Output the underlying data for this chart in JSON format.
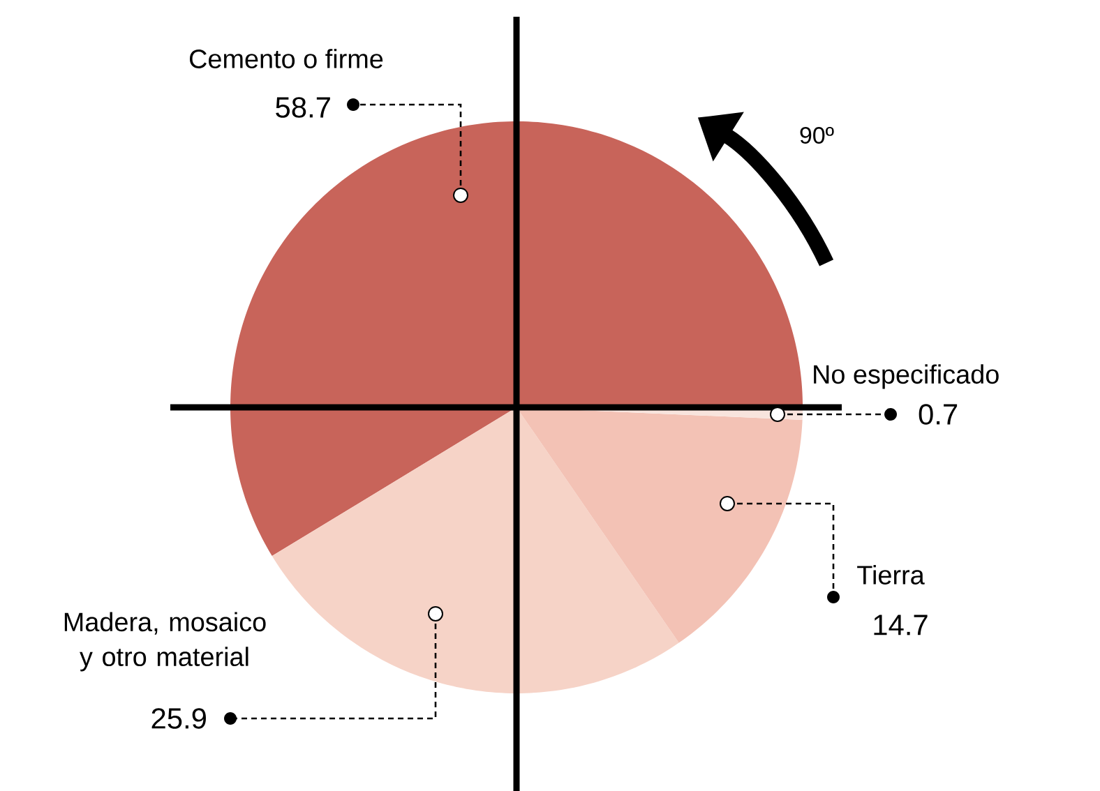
{
  "chart_data": {
    "type": "pie",
    "categories": [
      "Cemento o firme",
      "Madera, mosaico y otro material",
      "Tierra",
      "No especificado"
    ],
    "values": [
      58.7,
      25.9,
      14.7,
      0.7
    ],
    "colors": [
      "#c8645a",
      "#f6d3c7",
      "#f3c2b5",
      "#f8e4dd"
    ],
    "data_labels": true,
    "annotations": [
      "90º"
    ]
  }
}
